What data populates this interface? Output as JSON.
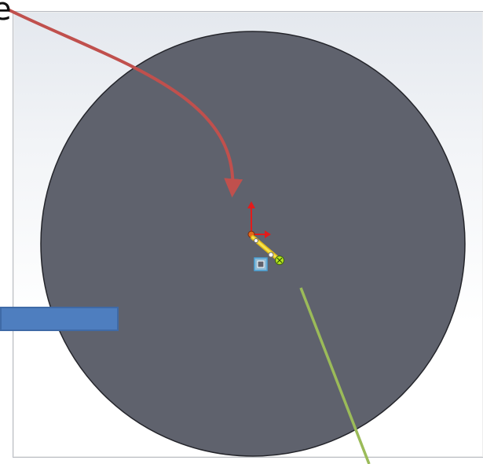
{
  "overlay": {
    "partial_heading_text": "e"
  },
  "colors": {
    "part_fill": "#5f626d",
    "part_edge": "#24252b",
    "red_arrow": "#c0504d",
    "green_callout_line": "#9bbb59",
    "blue_callout_box": "#4f81bd",
    "triad_red": "#e31b1b",
    "sketch_yellow": "#f3d317",
    "sketch_orange": "#e46a1a",
    "origin_cyan": "#4aa3d8"
  },
  "icons": {
    "origin": "origin-icon",
    "triad": "triad-arrow-icon",
    "sketch_point": "sketch-point-icon",
    "coincident": "coincident-relation-icon"
  }
}
